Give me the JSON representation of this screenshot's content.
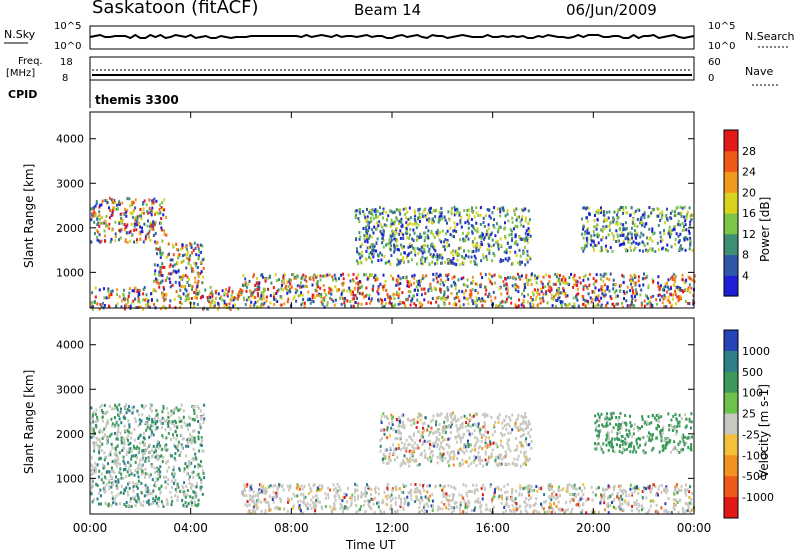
{
  "header": {
    "site": "Saskatoon (fitACF)",
    "beam": "Beam 14",
    "date": "06/Jun/2009"
  },
  "top_panels": {
    "nsky_label": "N.Sky",
    "nsky_ticks": [
      "10^5",
      "10^0"
    ],
    "nsearch_label": "N.Search",
    "nsearch_ticks": [
      "10^5",
      "10^0"
    ],
    "freq_label_1": "Freq.",
    "freq_label_2": "[MHz]",
    "freq_ticks": [
      "18",
      "8"
    ],
    "nave_label": "Nave",
    "nave_ticks": [
      "60",
      "0"
    ],
    "cpid_label": "CPID",
    "cpid_value": "themis 3300"
  },
  "axes": {
    "ylabel": "Slant Range [km]",
    "yticks": [
      "1000",
      "2000",
      "3000",
      "4000"
    ],
    "xlabel": "Time UT",
    "xticks": [
      "00:00",
      "04:00",
      "08:00",
      "12:00",
      "16:00",
      "20:00",
      "00:00"
    ]
  },
  "power_bar": {
    "label": "Power [dB]",
    "ticks": [
      "4",
      "8",
      "12",
      "16",
      "20",
      "24",
      "28"
    ],
    "colors": [
      "#1f1fd6",
      "#2f57a8",
      "#3f8f77",
      "#7dc44a",
      "#d9d31f",
      "#f29a1e",
      "#ef5a18",
      "#e31a1a"
    ]
  },
  "velocity_bar": {
    "label": "Velocity [m s-1]",
    "ticks": [
      "1000",
      "500",
      "100",
      "25",
      "-25",
      "-100",
      "-500",
      "-1000"
    ],
    "colors": [
      "#2444b8",
      "#2e7f8a",
      "#3b9a5a",
      "#6cc24a",
      "#c8c8c0",
      "#f4c23a",
      "#f2921f",
      "#ee5a1a",
      "#e01818"
    ]
  },
  "chart_data": {
    "type": "heatmap",
    "x_unit": "UT hours",
    "xlim": [
      0,
      24
    ],
    "ylim": [
      200,
      4600
    ],
    "power_regions": [
      {
        "x0": 0.0,
        "x1": 6.0,
        "y0": 200,
        "y1": 700,
        "level": "high"
      },
      {
        "x0": 0.0,
        "x1": 3.0,
        "y0": 1700,
        "y1": 2700,
        "level": "high"
      },
      {
        "x0": 2.5,
        "x1": 4.5,
        "y0": 700,
        "y1": 1700,
        "level": "high"
      },
      {
        "x0": 6.0,
        "x1": 24.0,
        "y0": 250,
        "y1": 1000,
        "level": "high"
      },
      {
        "x0": 10.5,
        "x1": 17.5,
        "y0": 1200,
        "y1": 2500,
        "level": "medium"
      },
      {
        "x0": 19.5,
        "x1": 23.9,
        "y0": 1500,
        "y1": 2500,
        "level": "medium"
      }
    ],
    "velocity_regions": [
      {
        "x0": 0.0,
        "x1": 4.5,
        "y0": 400,
        "y1": 2700,
        "sign": "negative-to-positive"
      },
      {
        "x0": 6.0,
        "x1": 24.0,
        "y0": 250,
        "y1": 900,
        "sign": "near-zero"
      },
      {
        "x0": 11.5,
        "x1": 17.5,
        "y0": 1300,
        "y1": 2500,
        "sign": "near-zero"
      },
      {
        "x0": 20.0,
        "x1": 23.9,
        "y0": 1600,
        "y1": 2500,
        "sign": "positive"
      }
    ]
  }
}
